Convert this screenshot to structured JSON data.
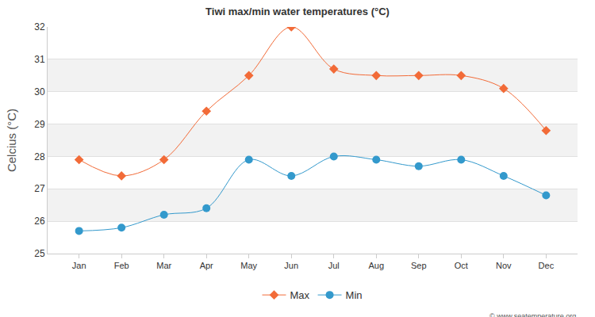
{
  "chart_data": {
    "type": "line",
    "title": "Tiwi max/min water temperatures (°C)",
    "y_label": "Celcius (°C)",
    "categories": [
      "Jan",
      "Feb",
      "Mar",
      "Apr",
      "May",
      "Jun",
      "Jul",
      "Aug",
      "Sep",
      "Oct",
      "Nov",
      "Dec"
    ],
    "series": [
      {
        "name": "Max",
        "color": "#f26b38",
        "marker": "diamond",
        "line_style": "solid",
        "values": [
          27.9,
          27.4,
          27.9,
          29.4,
          30.5,
          32.0,
          30.7,
          30.5,
          30.5,
          30.5,
          30.1,
          28.8
        ]
      },
      {
        "name": "Min",
        "color": "#3399cc",
        "marker": "circle",
        "line_style": "solid",
        "values": [
          25.7,
          25.8,
          26.2,
          26.4,
          27.9,
          27.4,
          28.0,
          27.9,
          27.7,
          27.9,
          27.4,
          26.8
        ]
      }
    ],
    "ylim": [
      25,
      32
    ],
    "yticks": [
      25,
      26,
      27,
      28,
      29,
      30,
      31,
      32
    ],
    "grid": true,
    "legend": "bottom",
    "annotations": [
      "© www.seatemperature.org"
    ]
  }
}
